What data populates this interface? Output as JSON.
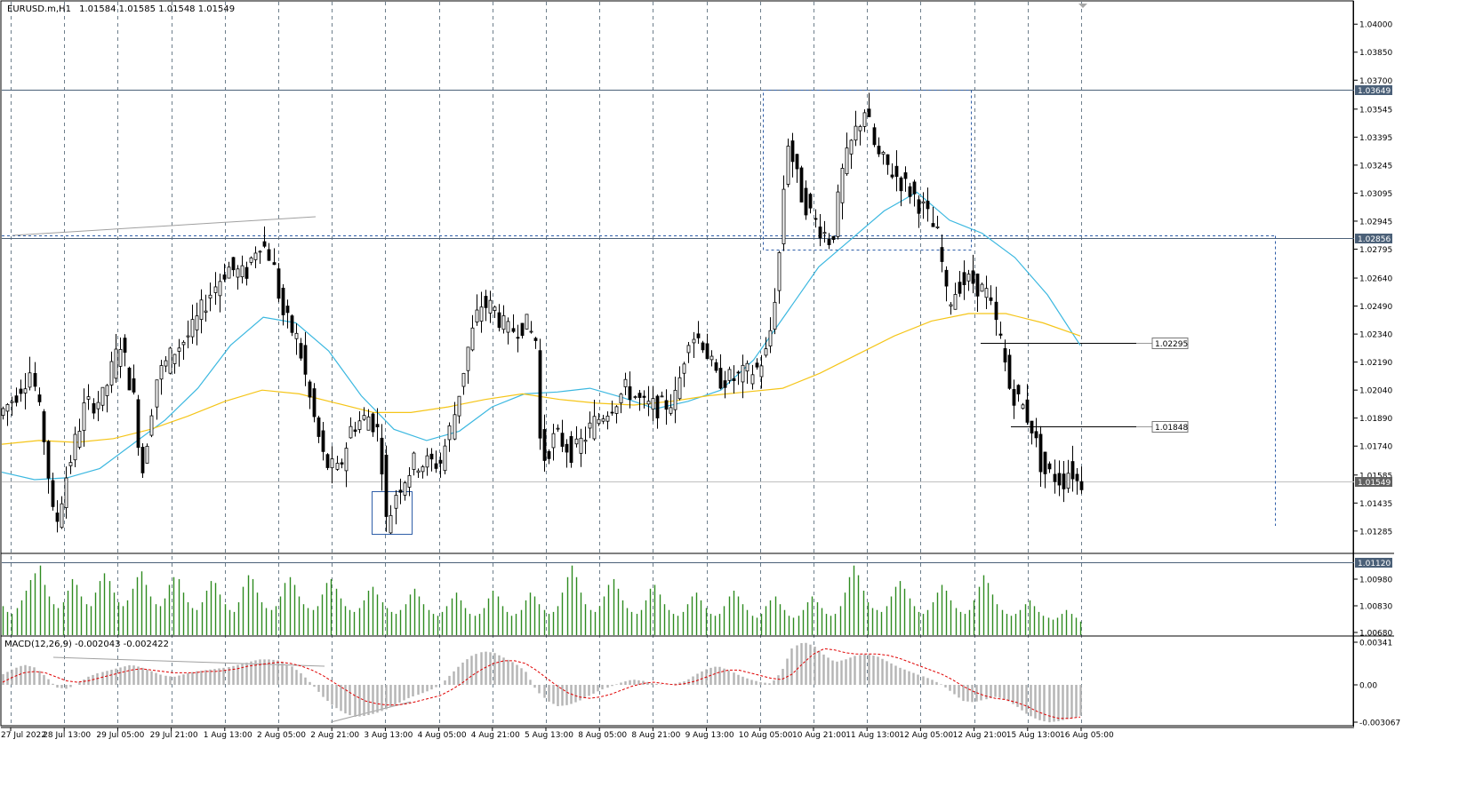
{
  "header": {
    "symbol": "EURUSD.m,H1",
    "ohlc": "1.01584 1.01585 1.01548 1.01549"
  },
  "colors": {
    "background": "#ffffff",
    "candle_up": "#ffffff",
    "candle_down": "#000000",
    "candle_outline": "#000000",
    "ma_fast": "#3cb8e0",
    "ma_slow": "#f5c518",
    "volume": "#2e8b20",
    "macd_hist": "#b4b4b4",
    "macd_signal": "#e00000",
    "grid": "#6e7f8c",
    "level_line": "#4b6078",
    "box": "#2f5ea8",
    "trendline": "#a0a0a0",
    "axis_text": "#000000"
  },
  "chart_data": [
    {
      "type": "candlestick",
      "name": "price",
      "symbol": "EURUSD.m",
      "timeframe": "H1",
      "x": [
        "27 Jul 2022",
        "28 Jul 13:00",
        "29 Jul 05:00",
        "29 Jul 21:00",
        "1 Aug 13:00",
        "2 Aug 05:00",
        "2 Aug 21:00",
        "3 Aug 13:00",
        "4 Aug 05:00",
        "4 Aug 21:00",
        "5 Aug 13:00",
        "8 Aug 05:00",
        "8 Aug 21:00",
        "9 Aug 13:00",
        "10 Aug 05:00",
        "10 Aug 21:00",
        "11 Aug 13:00",
        "12 Aug 05:00",
        "12 Aug 21:00",
        "15 Aug 13:00",
        "16 Aug 05:00"
      ],
      "y_axis_ticks": [
        "1.04000",
        "1.03850",
        "1.03700",
        "1.03545",
        "1.03395",
        "1.03245",
        "1.03095",
        "1.02945",
        "1.02795",
        "1.02640",
        "1.02490",
        "1.02340",
        "1.02190",
        "1.02040",
        "1.01890",
        "1.01740",
        "1.01585",
        "1.01435",
        "1.01285"
      ],
      "ylim": [
        1.0117,
        1.0412
      ],
      "current_price": "1.01549",
      "levels": [
        {
          "value": 1.03649,
          "label": "1.03649"
        },
        {
          "value": 1.02856,
          "label": "1.02856"
        },
        {
          "value": 1.0112,
          "label": "1.01120"
        }
      ],
      "marked_levels": [
        {
          "value": 1.02295,
          "label": "1.02295"
        },
        {
          "value": 1.01848,
          "label": "1.01848"
        }
      ],
      "ma_fast": [
        1.016,
        1.0156,
        1.0157,
        1.0162,
        1.0175,
        1.0188,
        1.0205,
        1.0228,
        1.0243,
        1.024,
        1.0225,
        1.0201,
        1.0183,
        1.0177,
        1.0182,
        1.0195,
        1.0202,
        1.0203,
        1.0205,
        1.02,
        1.0194,
        1.0198,
        1.0204,
        1.022,
        1.0245,
        1.027,
        1.0285,
        1.03,
        1.031,
        1.0295,
        1.0288,
        1.0275,
        1.0255,
        1.0228
      ],
      "ma_slow": [
        1.0175,
        1.0177,
        1.0176,
        1.0178,
        1.0183,
        1.019,
        1.0198,
        1.0204,
        1.0202,
        1.0197,
        1.0192,
        1.0192,
        1.0195,
        1.0199,
        1.0202,
        1.0199,
        1.0197,
        1.0196,
        1.0198,
        1.0201,
        1.0203,
        1.0205,
        1.0213,
        1.0223,
        1.0233,
        1.0241,
        1.0245,
        1.0245,
        1.024,
        1.0233
      ]
    },
    {
      "type": "bar",
      "name": "volume",
      "y_axis_ticks": [
        "1.00980",
        "1.00830",
        "1.00680"
      ],
      "values": [
        30,
        24,
        22,
        28,
        36,
        46,
        57,
        64,
        72,
        52,
        40,
        32,
        28,
        34,
        46,
        58,
        52,
        40,
        32,
        30,
        44,
        56,
        64,
        56,
        44,
        34,
        30,
        36,
        48,
        60,
        66,
        52,
        40,
        32,
        30,
        38,
        52,
        60,
        58,
        44,
        34,
        28,
        26,
        34,
        46,
        56,
        54,
        42,
        32,
        26,
        24,
        34,
        50,
        62,
        58,
        44,
        34,
        28,
        26,
        30,
        40,
        54,
        60,
        52,
        40,
        32,
        28,
        26,
        30,
        42,
        54,
        58,
        48,
        38,
        30,
        26,
        24,
        28,
        36,
        46,
        50,
        42,
        34,
        28,
        24,
        22,
        26,
        32,
        42,
        48,
        40,
        32,
        26,
        22,
        20,
        24,
        30,
        38,
        44,
        36,
        28,
        22,
        20,
        22,
        28,
        38,
        46,
        40,
        30,
        24,
        20,
        22,
        26,
        36,
        44,
        40,
        32,
        26,
        22,
        24,
        30,
        44,
        60,
        72,
        60,
        44,
        32,
        26,
        24,
        30,
        40,
        52,
        58,
        48,
        36,
        28,
        24,
        22,
        26,
        36,
        48,
        52,
        42,
        32,
        26,
        22,
        20,
        24,
        32,
        40,
        44,
        36,
        28,
        22,
        20,
        22,
        30,
        40,
        46,
        40,
        32,
        26,
        20,
        18,
        22,
        30,
        36,
        40,
        32,
        26,
        20,
        18,
        20,
        26,
        34,
        40,
        34,
        28,
        22,
        20,
        22,
        30,
        44,
        60,
        72,
        62,
        46,
        34,
        28,
        26,
        24,
        30,
        40,
        50,
        56,
        48,
        38,
        30,
        24,
        22,
        26,
        34,
        44,
        52,
        46,
        36,
        28,
        24,
        22,
        26,
        36,
        50,
        62,
        54,
        42,
        32,
        26,
        22,
        20,
        22,
        26,
        32,
        36,
        30,
        24,
        20,
        18,
        16,
        18,
        22,
        26,
        22,
        18,
        14
      ]
    },
    {
      "type": "bar",
      "name": "MACD(12,26,9)",
      "header": "MACD(12,26,9) -0.002043 -0.002422",
      "y_axis_ticks": [
        "0.00341",
        "0.00",
        "-0.003067"
      ],
      "ylim": [
        -0.00345,
        0.00345
      ],
      "values": [
        0.0008,
        0.0012,
        0.0015,
        0.0013,
        0.0006,
        -0.0002,
        -0.0003,
        0.0001,
        0.0006,
        0.0009,
        0.0011,
        0.0013,
        0.0015,
        0.0013,
        0.001,
        0.0007,
        0.0006,
        0.0008,
        0.001,
        0.0011,
        0.0012,
        0.0013,
        0.0015,
        0.0017,
        0.0019,
        0.0019,
        0.0018,
        0.0014,
        0.0008,
        0.0,
        -0.0009,
        -0.0016,
        -0.0021,
        -0.0024,
        -0.0023,
        -0.0021,
        -0.0018,
        -0.0014,
        -0.001,
        -0.0007,
        -0.0004,
        0.0,
        0.0008,
        0.0016,
        0.0022,
        0.0025,
        0.0024,
        0.002,
        0.0016,
        0.001,
        -0.0004,
        -0.0012,
        -0.0016,
        -0.0015,
        -0.0012,
        -0.0008,
        -0.0004,
        -0.0001,
        0.0002,
        0.0004,
        0.0003,
        0.0001,
        0.0,
        0.0001,
        0.0003,
        0.0008,
        0.0012,
        0.0014,
        0.0011,
        0.0007,
        0.0004,
        0.0002,
        0.0001,
        0.001,
        0.0028,
        0.0032,
        0.0029,
        0.0022,
        0.0017,
        0.0019,
        0.0022,
        0.0023,
        0.0021,
        0.0017,
        0.0013,
        0.001,
        0.0007,
        0.0004,
        0.0,
        -0.0006,
        -0.0012,
        -0.0013,
        -0.0011,
        -0.0009,
        -0.0011,
        -0.0016,
        -0.0022,
        -0.0026,
        -0.0028,
        -0.0027,
        -0.0025,
        -0.0023
      ],
      "signal": [
        0.0002,
        0.0006,
        0.0009,
        0.001,
        0.0009,
        0.0006,
        0.0003,
        0.0002,
        0.0003,
        0.0005,
        0.0007,
        0.0009,
        0.0011,
        0.0012,
        0.0011,
        0.001,
        0.0009,
        0.0009,
        0.0009,
        0.001,
        0.001,
        0.0011,
        0.0012,
        0.0014,
        0.0015,
        0.0016,
        0.0017,
        0.0016,
        0.0014,
        0.0011,
        0.0007,
        0.0002,
        -0.0003,
        -0.0008,
        -0.0012,
        -0.0014,
        -0.0015,
        -0.0015,
        -0.0014,
        -0.0012,
        -0.001,
        -0.0008,
        -0.0004,
        0.0001,
        0.0007,
        0.0012,
        0.0016,
        0.0018,
        0.0018,
        0.0016,
        0.0011,
        0.0005,
        -0.0001,
        -0.0006,
        -0.0009,
        -0.001,
        -0.0009,
        -0.0007,
        -0.0004,
        -0.0001,
        0.0001,
        0.0002,
        0.0001,
        0.0,
        0.0001,
        0.0003,
        0.0006,
        0.0009,
        0.0011,
        0.0011,
        0.0009,
        0.0007,
        0.0005,
        0.0004,
        0.0008,
        0.0016,
        0.0023,
        0.0027,
        0.0026,
        0.0024,
        0.0023,
        0.0023,
        0.0023,
        0.0022,
        0.002,
        0.0017,
        0.0014,
        0.0011,
        0.0008,
        0.0004,
        -0.0001,
        -0.0005,
        -0.0008,
        -0.001,
        -0.0011,
        -0.0013,
        -0.0016,
        -0.002,
        -0.0023,
        -0.0025,
        -0.0025,
        -0.0024
      ]
    }
  ]
}
